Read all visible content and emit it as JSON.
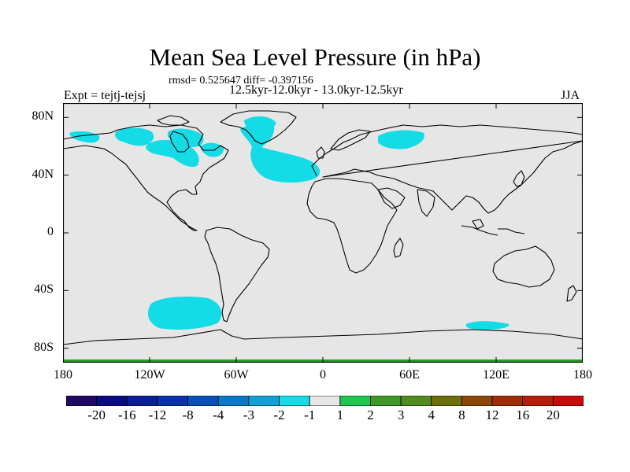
{
  "title": "Mean Sea Level Pressure (in hPa)",
  "stats": "rmsd= 0.525647 diff= -0.397156",
  "period": "12.5kyr-12.0kyr - 13.0kyr-12.5kyr",
  "experiment": "Expt = tejtj-tejsj",
  "season": "JJA",
  "axes": {
    "lon_ticks": [
      {
        "value": -180,
        "label": "180"
      },
      {
        "value": -120,
        "label": "120W"
      },
      {
        "value": -60,
        "label": "60W"
      },
      {
        "value": 0,
        "label": "0"
      },
      {
        "value": 60,
        "label": "60E"
      },
      {
        "value": 120,
        "label": "120E"
      },
      {
        "value": 180,
        "label": "180"
      }
    ],
    "lat_ticks": [
      {
        "value": 80,
        "label": "80N"
      },
      {
        "value": 40,
        "label": "40N"
      },
      {
        "value": 0,
        "label": "0"
      },
      {
        "value": -40,
        "label": "40S"
      },
      {
        "value": -80,
        "label": "80S"
      }
    ],
    "lon_range": [
      -180,
      180
    ],
    "lat_range": [
      -90,
      90
    ]
  },
  "colors": {
    "ocean_background": "#e6e6e6",
    "anomaly_fill": "#14dce6",
    "coastline": "#000000",
    "frame": "#000000"
  },
  "anomaly_regions": [
    {
      "name": "north-atlantic-negative",
      "bin": "-2 to -1"
    },
    {
      "name": "north-america-negative",
      "bin": "-2 to -1"
    },
    {
      "name": "northern-siberia-negative",
      "bin": "-2 to -1"
    },
    {
      "name": "southern-ocean-pacific-negative",
      "bin": "-2 to -1"
    },
    {
      "name": "antarctic-coast-negative",
      "bin": "-2 to -1"
    }
  ],
  "colorbar": {
    "labels": [
      "-20",
      "-16",
      "-12",
      "-8",
      "-4",
      "-3",
      "-2",
      "-1",
      "1",
      "2",
      "3",
      "4",
      "8",
      "12",
      "16",
      "20"
    ],
    "colors": [
      "#1e0a64",
      "#0a0a82",
      "#0a1e96",
      "#0a32aa",
      "#0a50b9",
      "#0a78c8",
      "#14a0d7",
      "#14dce6",
      "#e6e6e6",
      "#1ec850",
      "#3c9628",
      "#508c1e",
      "#6e6e0a",
      "#8c460a",
      "#a02d0a",
      "#b41e0a",
      "#c80a0a"
    ]
  }
}
